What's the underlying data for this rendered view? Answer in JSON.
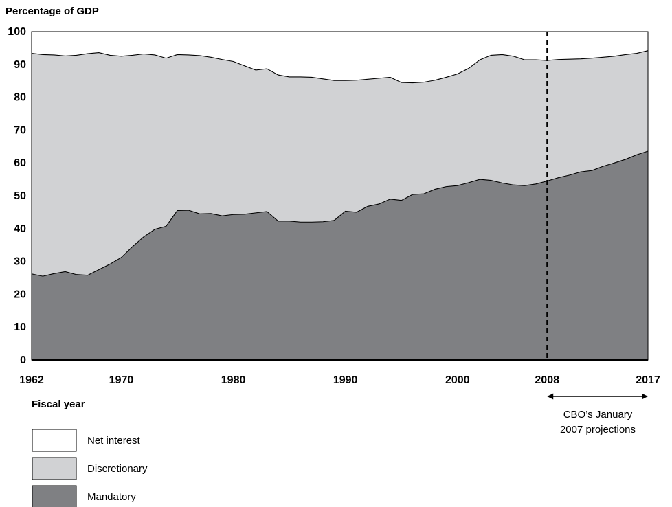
{
  "chart_data": {
    "type": "area",
    "stacked": true,
    "ylabel": "Percentage of GDP",
    "xlabel": "Fiscal year",
    "xlim": [
      1962,
      2017
    ],
    "ylim": [
      0,
      100
    ],
    "x_ticks": [
      1962,
      1970,
      1980,
      1990,
      2000,
      2008,
      2017
    ],
    "y_ticks": [
      0,
      10,
      20,
      30,
      40,
      50,
      60,
      70,
      80,
      90,
      100
    ],
    "grid": false,
    "legend_position": "bottom-left",
    "projection_start": 2008,
    "projection_label_line1": "CBO’s January",
    "projection_label_line2": "2007 projections",
    "x": [
      1962,
      1963,
      1964,
      1965,
      1966,
      1967,
      1968,
      1969,
      1970,
      1971,
      1972,
      1973,
      1974,
      1975,
      1976,
      1977,
      1978,
      1979,
      1980,
      1981,
      1982,
      1983,
      1984,
      1985,
      1986,
      1987,
      1988,
      1989,
      1990,
      1991,
      1992,
      1993,
      1994,
      1995,
      1996,
      1997,
      1998,
      1999,
      2000,
      2001,
      2002,
      2003,
      2004,
      2005,
      2006,
      2007,
      2008,
      2009,
      2010,
      2011,
      2012,
      2013,
      2014,
      2015,
      2016,
      2017
    ],
    "series": [
      {
        "name": "Mandatory",
        "color": "#7f8083",
        "values": [
          26.2,
          25.5,
          26.3,
          26.9,
          26.0,
          25.8,
          27.5,
          29.2,
          31.2,
          34.5,
          37.5,
          39.8,
          40.7,
          45.5,
          45.6,
          44.5,
          44.6,
          43.9,
          44.3,
          44.4,
          44.8,
          45.2,
          42.3,
          42.3,
          42.0,
          42.0,
          42.1,
          42.5,
          45.3,
          45.0,
          46.8,
          47.5,
          49.0,
          48.6,
          50.4,
          50.6,
          52.0,
          52.8,
          53.1,
          54.0,
          55.0,
          54.7,
          53.9,
          53.3,
          53.1,
          53.6,
          54.5,
          55.5,
          56.3,
          57.3,
          57.7,
          59.0,
          60.0,
          61.1,
          62.5,
          63.6
        ]
      },
      {
        "name": "Discretionary",
        "color": "#d1d2d4",
        "values": [
          67.2,
          67.5,
          66.6,
          65.7,
          66.8,
          67.5,
          66.1,
          63.6,
          61.3,
          58.3,
          55.7,
          53.1,
          51.2,
          47.5,
          47.3,
          48.2,
          47.6,
          47.6,
          46.6,
          45.2,
          43.5,
          43.5,
          44.5,
          43.9,
          44.2,
          44.1,
          43.5,
          42.6,
          39.8,
          40.2,
          38.7,
          38.3,
          37.1,
          35.9,
          34.0,
          34.0,
          33.2,
          33.3,
          34.0,
          34.8,
          36.4,
          38.1,
          39.1,
          39.2,
          38.3,
          37.8,
          36.7,
          36.0,
          35.3,
          34.4,
          34.2,
          33.2,
          32.5,
          31.9,
          30.9,
          30.6
        ]
      },
      {
        "name": "Net interest",
        "color": "#ffffff",
        "values": [
          6.6,
          7.0,
          7.1,
          7.4,
          7.2,
          6.7,
          6.4,
          7.2,
          7.5,
          7.2,
          6.8,
          7.1,
          8.1,
          7.0,
          7.1,
          7.3,
          7.8,
          8.5,
          9.1,
          10.4,
          11.7,
          11.3,
          13.2,
          13.8,
          13.8,
          13.9,
          14.4,
          14.9,
          14.9,
          14.8,
          14.5,
          14.2,
          13.9,
          15.5,
          15.6,
          15.4,
          14.8,
          13.9,
          12.9,
          11.2,
          8.6,
          7.2,
          7.0,
          7.5,
          8.6,
          8.6,
          8.8,
          8.5,
          8.4,
          8.3,
          8.1,
          7.8,
          7.5,
          7.0,
          6.6,
          5.8
        ]
      }
    ]
  }
}
